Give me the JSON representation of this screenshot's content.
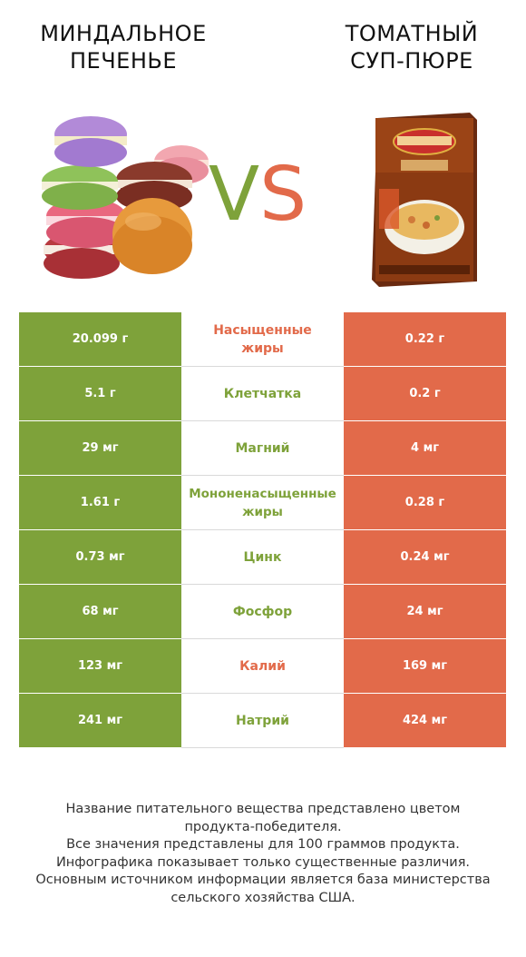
{
  "header": {
    "left_title_line1": "МИНДАЛЬНОЕ",
    "left_title_line2": "ПЕЧЕНЬЕ",
    "right_title_line1": "ТОМАТНЫЙ",
    "right_title_line2": "СУП-ПЮРЕ",
    "vs_v": "V",
    "vs_s": "S"
  },
  "colors": {
    "left": "#7ea23a",
    "right": "#e26a4a"
  },
  "rows": [
    {
      "nutrient": "Насыщенные жиры",
      "line1": "Насыщенные",
      "line2": "жиры",
      "left": "20.099 г",
      "right": "0.22 г",
      "winner": "right"
    },
    {
      "nutrient": "Клетчатка",
      "line1": "Клетчатка",
      "line2": "",
      "left": "5.1 г",
      "right": "0.2 г",
      "winner": "left"
    },
    {
      "nutrient": "Магний",
      "line1": "Магний",
      "line2": "",
      "left": "29 мг",
      "right": "4 мг",
      "winner": "left"
    },
    {
      "nutrient": "Мононенасыщенные жиры",
      "line1": "Мононенасыщенные",
      "line2": "жиры",
      "left": "1.61 г",
      "right": "0.28 г",
      "winner": "left"
    },
    {
      "nutrient": "Цинк",
      "line1": "Цинк",
      "line2": "",
      "left": "0.73 мг",
      "right": "0.24 мг",
      "winner": "left"
    },
    {
      "nutrient": "Фосфор",
      "line1": "Фосфор",
      "line2": "",
      "left": "68 мг",
      "right": "24 мг",
      "winner": "left"
    },
    {
      "nutrient": "Калий",
      "line1": "Калий",
      "line2": "",
      "left": "123 мг",
      "right": "169 мг",
      "winner": "right"
    },
    {
      "nutrient": "Натрий",
      "line1": "Натрий",
      "line2": "",
      "left": "241 мг",
      "right": "424 мг",
      "winner": "left"
    }
  ],
  "footer": {
    "line1": "Название питательного вещества представлено цветом",
    "line2": "продукта-победителя.",
    "line3": "Все значения представлены для 100 граммов продукта.",
    "line4": "Инфографика показывает только существенные различия.",
    "line5": "Основным источником информации является база министерства",
    "line6": "сельского хозяйства США."
  },
  "icons": {
    "left_image": "macarons-image",
    "right_image": "soup-box-image"
  }
}
